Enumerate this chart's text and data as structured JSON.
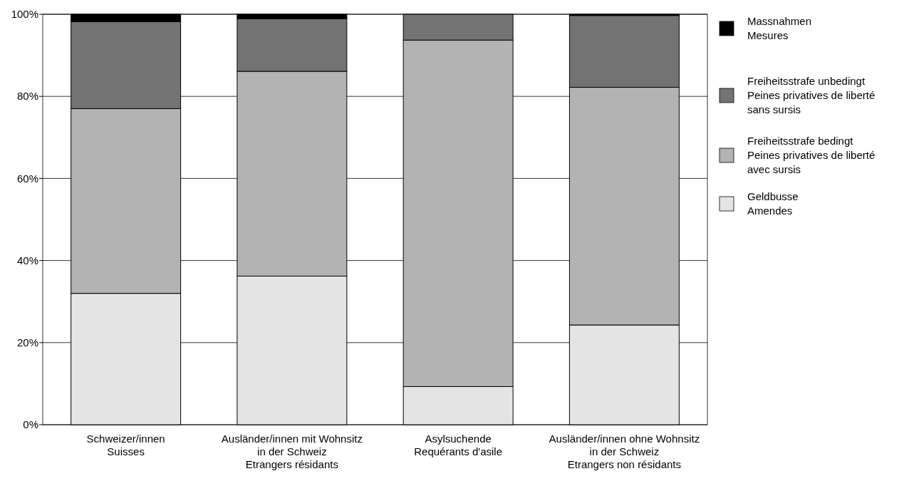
{
  "chart_data": {
    "type": "bar",
    "stacked": true,
    "categories": [
      "Schweizer/innen\nSuisses",
      "Ausländer/innen mit Wohnsitz\nin der Schweiz\nEtrangers résidants",
      "Asylsuchende\nRequérants d'asile",
      "Ausländer/innen ohne Wohnsitz\nin der Schweiz\nEtrangers non résidants"
    ],
    "series": [
      {
        "name": "Geldbusse\nAmendes",
        "color": "#e4e4e4",
        "values": [
          32.0,
          36.2,
          9.3,
          24.3
        ]
      },
      {
        "name": "Freiheitsstrafe bedingt\nPeines privatives de liberté\navec sursis",
        "color": "#b3b3b3",
        "values": [
          45.0,
          49.9,
          84.4,
          57.9
        ]
      },
      {
        "name": "Freiheitsstrafe unbedingt\nPeines privatives de liberté\nsans sursis",
        "color": "#737373",
        "values": [
          21.2,
          12.8,
          6.3,
          17.5
        ]
      },
      {
        "name": "Massnahmen\nMesures",
        "color": "#000000",
        "values": [
          1.8,
          1.1,
          0,
          0.3
        ]
      }
    ],
    "ylim": [
      0,
      100
    ],
    "yticks": [
      {
        "value": 0,
        "label": "0%"
      },
      {
        "value": 20,
        "label": "20%"
      },
      {
        "value": 40,
        "label": "40%"
      },
      {
        "value": 60,
        "label": "60%"
      },
      {
        "value": 80,
        "label": "80%"
      },
      {
        "value": 100,
        "label": "100%"
      }
    ],
    "grid": "y",
    "legend": "right"
  }
}
